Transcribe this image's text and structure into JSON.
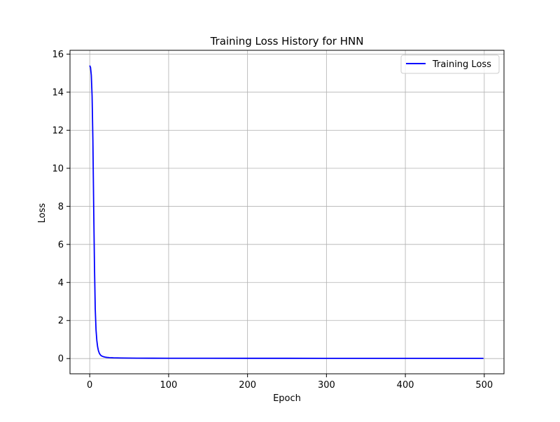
{
  "chart_data": {
    "type": "line",
    "title": "Training Loss History for HNN",
    "xlabel": "Epoch",
    "ylabel": "Loss",
    "xlim": [
      -25,
      525
    ],
    "ylim": [
      -0.8,
      16.2
    ],
    "xticks": [
      0,
      100,
      200,
      300,
      400,
      500
    ],
    "yticks": [
      0,
      2,
      4,
      6,
      8,
      10,
      12,
      14,
      16
    ],
    "grid": true,
    "legend_position": "top-right",
    "series": [
      {
        "name": "Training Loss",
        "color": "#0000ff",
        "x": [
          0,
          1,
          2,
          3,
          4,
          5,
          6,
          7,
          8,
          9,
          10,
          11,
          12,
          13,
          14,
          15,
          16,
          18,
          20,
          22,
          25,
          30,
          35,
          40,
          50,
          60,
          80,
          100,
          150,
          200,
          250,
          300,
          350,
          400,
          450,
          499
        ],
        "y": [
          15.4,
          15.3,
          14.9,
          13.8,
          11.5,
          8.0,
          4.9,
          2.6,
          1.5,
          0.95,
          0.62,
          0.42,
          0.3,
          0.22,
          0.17,
          0.14,
          0.12,
          0.09,
          0.07,
          0.06,
          0.05,
          0.04,
          0.035,
          0.03,
          0.025,
          0.022,
          0.02,
          0.018,
          0.016,
          0.015,
          0.014,
          0.013,
          0.012,
          0.012,
          0.011,
          0.011
        ]
      }
    ]
  }
}
